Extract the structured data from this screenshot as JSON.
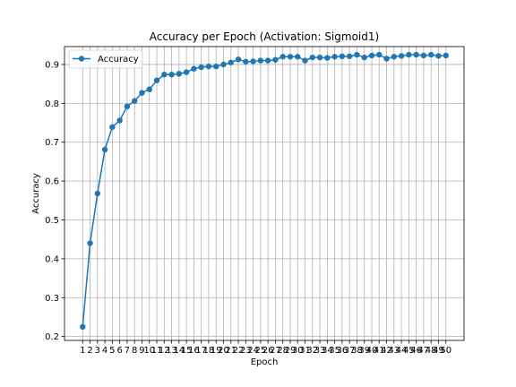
{
  "chart_data": {
    "type": "line",
    "title": "Accuracy per Epoch (Activation: Sigmoid1)",
    "xlabel": "Epoch",
    "ylabel": "Accuracy",
    "x": [
      1,
      2,
      3,
      4,
      5,
      6,
      7,
      8,
      9,
      10,
      11,
      12,
      13,
      14,
      15,
      16,
      17,
      18,
      19,
      20,
      21,
      22,
      23,
      24,
      25,
      26,
      27,
      28,
      29,
      30,
      31,
      32,
      33,
      34,
      35,
      36,
      37,
      38,
      39,
      40,
      41,
      42,
      43,
      44,
      45,
      46,
      47,
      48,
      49,
      50
    ],
    "x_tick_labels": [
      "1",
      "2",
      "3",
      "4",
      "5",
      "6",
      "7",
      "8",
      "9",
      "10",
      "11",
      "12",
      "13",
      "14",
      "15",
      "16",
      "17",
      "18",
      "19",
      "20",
      "21",
      "22",
      "23",
      "24",
      "25",
      "26",
      "27",
      "28",
      "29",
      "30",
      "31",
      "32",
      "33",
      "34",
      "35",
      "36",
      "37",
      "38",
      "39",
      "40",
      "41",
      "42",
      "43",
      "44",
      "45",
      "46",
      "47",
      "48",
      "49",
      "50"
    ],
    "y_ticks": [
      0.2,
      0.3,
      0.4,
      0.5,
      0.6,
      0.7,
      0.8,
      0.9
    ],
    "y_tick_labels": [
      "0.2",
      "0.3",
      "0.4",
      "0.5",
      "0.6",
      "0.7",
      "0.8",
      "0.9"
    ],
    "xlim": [
      -1.45,
      52.45
    ],
    "ylim": [
      0.19,
      0.946
    ],
    "grid": true,
    "legend_position": "top-left",
    "series": [
      {
        "name": "Accuracy",
        "color": "#1f77b4",
        "marker": "circle",
        "values": [
          0.225,
          0.44,
          0.568,
          0.681,
          0.739,
          0.756,
          0.792,
          0.806,
          0.827,
          0.836,
          0.859,
          0.874,
          0.874,
          0.876,
          0.88,
          0.889,
          0.893,
          0.895,
          0.895,
          0.9,
          0.905,
          0.913,
          0.907,
          0.908,
          0.91,
          0.91,
          0.912,
          0.92,
          0.92,
          0.92,
          0.91,
          0.918,
          0.918,
          0.917,
          0.92,
          0.921,
          0.921,
          0.925,
          0.918,
          0.923,
          0.925,
          0.915,
          0.92,
          0.922,
          0.925,
          0.925,
          0.923,
          0.925,
          0.922,
          0.923
        ]
      }
    ]
  }
}
